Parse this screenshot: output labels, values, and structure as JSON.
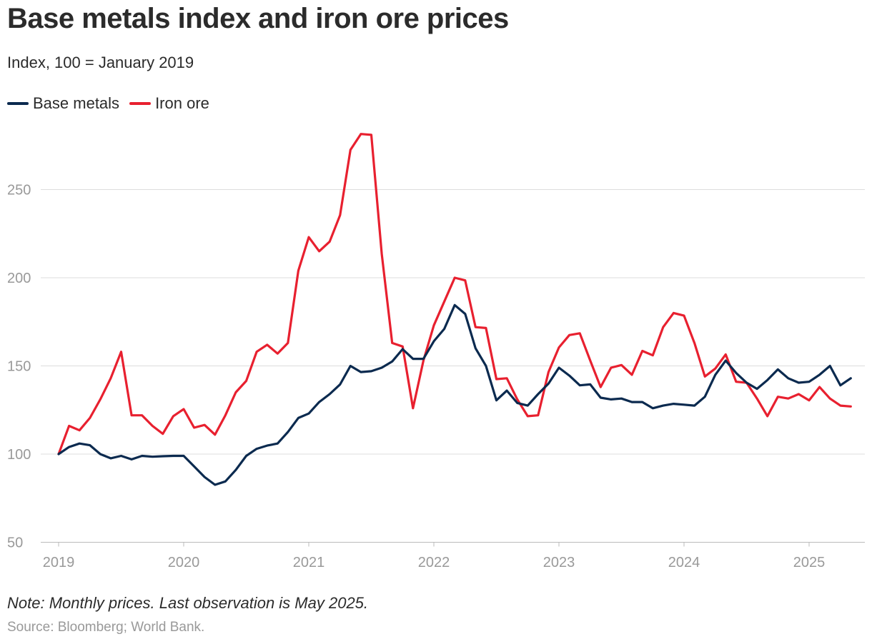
{
  "title": "Base metals index and iron ore prices",
  "subtitle": "Index, 100 = January 2019",
  "note": "Note: Monthly prices. Last observation is May 2025.",
  "source": "Source: Bloomberg; World Bank.",
  "chart_data": {
    "type": "line",
    "title": "Base metals index and iron ore prices",
    "ylabel": "Index, 100 = January 2019",
    "xlabel": "",
    "x_start": "2019-01",
    "x_end": "2025-05",
    "frequency": "monthly",
    "ylim": [
      50,
      285
    ],
    "yticks": [
      50,
      100,
      150,
      200,
      250
    ],
    "ytick_labels": [
      "50",
      "100",
      "150",
      "200",
      "250"
    ],
    "xtick_labels": [
      "2019",
      "2020",
      "2021",
      "2022",
      "2023",
      "2024",
      "2025"
    ],
    "grid": true,
    "legend_placement": "top-left",
    "series": [
      {
        "name": "Base metals",
        "color": "#0b2a4f",
        "values": [
          100,
          104,
          106,
          105,
          100,
          97.6,
          99,
          97,
          99,
          98.5,
          98.8,
          99,
          99,
          93,
          87,
          82.6,
          84.5,
          91,
          99,
          103,
          104.8,
          106,
          112.5,
          120.5,
          123,
          129.5,
          134,
          139.5,
          150,
          146.5,
          147,
          149,
          152.5,
          159.5,
          154,
          154,
          164,
          171,
          184.5,
          179.5,
          160,
          150,
          130.5,
          136,
          129,
          127.5,
          134,
          140,
          149,
          144.5,
          139,
          139.5,
          132,
          131,
          131.5,
          129.5,
          129.5,
          126,
          127.5,
          128.5,
          128,
          127.5,
          132.5,
          145,
          153,
          146,
          140.5,
          137,
          142,
          148,
          143,
          140.5,
          141,
          145,
          150,
          139,
          143
        ]
      },
      {
        "name": "Iron ore",
        "color": "#e8202f",
        "values": [
          100,
          116,
          113.5,
          120.5,
          131,
          143,
          158,
          122,
          122,
          116,
          111.5,
          121.5,
          125.5,
          115,
          116.5,
          111,
          122,
          135,
          141.5,
          158,
          162,
          157,
          163,
          204,
          223,
          215,
          220.5,
          235.5,
          272.5,
          281.5,
          281,
          213.5,
          163,
          161,
          126,
          153,
          173,
          186.5,
          200,
          198.5,
          172,
          171.5,
          142.5,
          143,
          131,
          121.5,
          122,
          146.5,
          160.5,
          167.5,
          168.5,
          153,
          138,
          149,
          150.5,
          145,
          158.5,
          156,
          172,
          180,
          178.5,
          163,
          144,
          148.5,
          156.5,
          141,
          140.5,
          131.5,
          121.5,
          132.5,
          131.5,
          134,
          130.5,
          138,
          131.5,
          127.5,
          127
        ]
      }
    ]
  }
}
